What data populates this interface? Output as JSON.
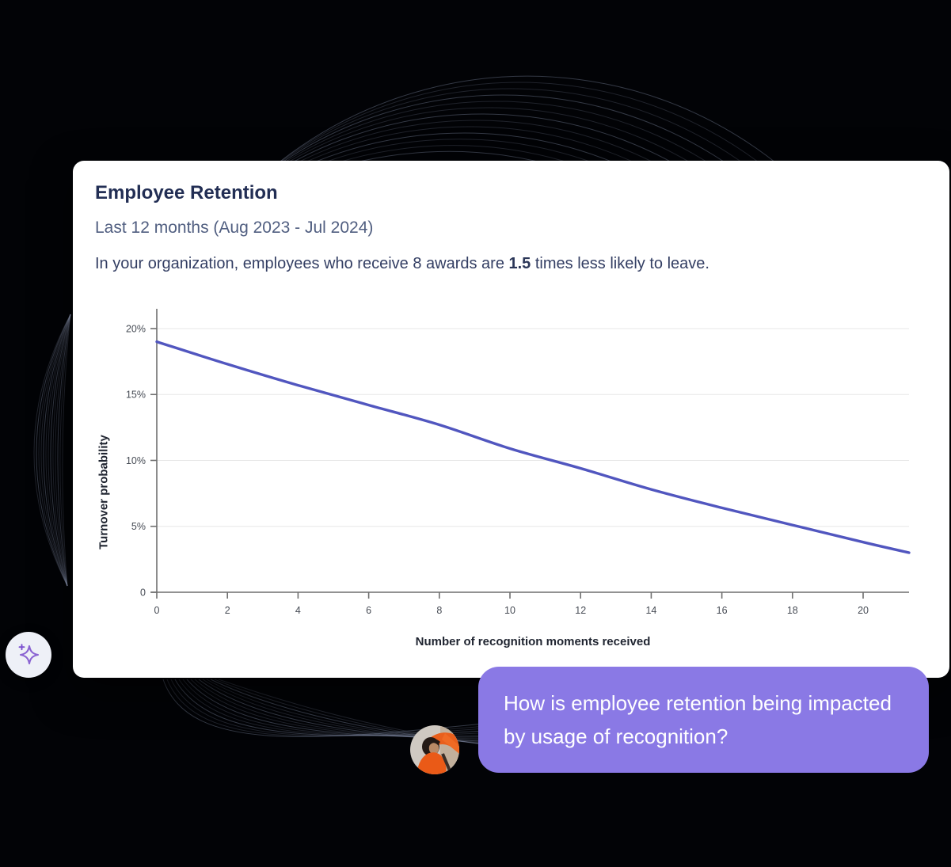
{
  "card": {
    "title": "Employee Retention",
    "subtitle": "Last 12 months (Aug 2023 - Jul 2024)",
    "description": {
      "prefix": "In your organization, employees who receive 8 awards are ",
      "bold": "1.5",
      "suffix": " times less likely to leave."
    }
  },
  "chart_data": {
    "type": "line",
    "title": "",
    "xlabel": "Number of recognition moments received",
    "ylabel": "Turnover probability",
    "x": [
      0,
      2,
      4,
      6,
      8,
      10,
      12,
      14,
      16,
      18,
      20,
      21.3
    ],
    "y": [
      19.0,
      17.3,
      15.7,
      14.2,
      12.7,
      10.9,
      9.4,
      7.8,
      6.4,
      5.1,
      3.8,
      3.0
    ],
    "x_ticks": [
      0,
      2,
      4,
      6,
      8,
      10,
      12,
      14,
      16,
      18,
      20
    ],
    "x_tick_labels": [
      "0",
      "2",
      "4",
      "6",
      "8",
      "10",
      "12",
      "14",
      "16",
      "18",
      "20"
    ],
    "y_ticks": [
      0,
      5,
      10,
      15,
      20
    ],
    "y_tick_labels": [
      "0",
      "5%",
      "10%",
      "15%",
      "20%"
    ],
    "xlim": [
      0,
      21.3
    ],
    "ylim": [
      0,
      21.5
    ],
    "grid": "horizontal",
    "legend": "none",
    "line_color": "#5156bf"
  },
  "chat": {
    "message": "How is employee retention being impacted by usage of recognition?",
    "bubble_color": "#8a79e5"
  },
  "assistant_button": {
    "icon": "sparkle-icon"
  },
  "colors": {
    "page_bg": "#000000",
    "card_bg": "#ffffff",
    "title_text": "#222e54",
    "subtitle_text": "#505e80",
    "body_text": "#333e63",
    "chart_line": "#5156bf",
    "bubble": "#8a79e5",
    "deco_lines": "#aab6d7"
  }
}
